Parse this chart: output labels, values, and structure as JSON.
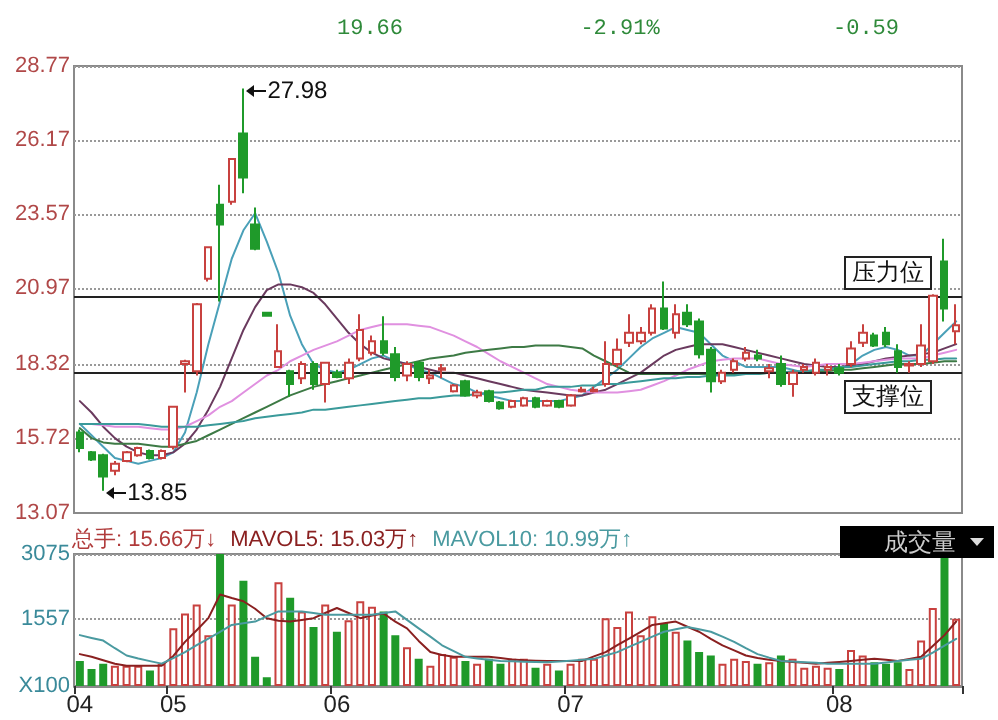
{
  "chart_data": [
    {
      "type": "candlestick",
      "categories": [
        "04",
        null,
        null,
        null,
        null,
        null,
        null,
        null,
        "05",
        null,
        null,
        null,
        null,
        null,
        null,
        null,
        null,
        null,
        null,
        null,
        null,
        null,
        "06",
        null,
        null,
        null,
        null,
        null,
        null,
        null,
        null,
        null,
        null,
        null,
        null,
        null,
        null,
        null,
        null,
        null,
        null,
        null,
        "07",
        null,
        null,
        null,
        null,
        null,
        null,
        null,
        null,
        null,
        null,
        null,
        null,
        null,
        null,
        null,
        null,
        null,
        null,
        null,
        null,
        null,
        null,
        "08",
        null,
        null,
        null,
        null,
        null,
        null,
        null,
        null,
        null,
        null
      ],
      "ohlc": [
        [
          15.9,
          16.0,
          15.2,
          15.35
        ],
        [
          15.2,
          15.25,
          14.9,
          14.95
        ],
        [
          15.1,
          15.15,
          13.85,
          14.35
        ],
        [
          14.55,
          14.9,
          14.4,
          14.8
        ],
        [
          14.9,
          15.25,
          14.85,
          15.2
        ],
        [
          15.1,
          15.4,
          15.05,
          15.35
        ],
        [
          15.25,
          15.3,
          14.95,
          15.0
        ],
        [
          15.0,
          15.3,
          14.95,
          15.25
        ],
        [
          15.4,
          16.8,
          15.3,
          16.8
        ],
        [
          18.3,
          18.45,
          17.3,
          18.4
        ],
        [
          18.05,
          20.45,
          17.9,
          20.4
        ],
        [
          21.3,
          22.4,
          21.2,
          22.4
        ],
        [
          23.9,
          24.6,
          20.5,
          23.2
        ],
        [
          24.0,
          25.5,
          23.9,
          25.5
        ],
        [
          26.4,
          27.98,
          24.3,
          24.85
        ],
        [
          23.2,
          23.8,
          22.3,
          22.35
        ],
        [
          20.1,
          20.1,
          20.0,
          20.0
        ],
        [
          18.2,
          19.7,
          18.2,
          18.75
        ],
        [
          18.05,
          18.1,
          17.15,
          17.6
        ],
        [
          17.8,
          18.4,
          17.6,
          18.3
        ],
        [
          18.3,
          18.4,
          17.4,
          17.6
        ],
        [
          17.6,
          18.35,
          16.95,
          18.35
        ],
        [
          18.0,
          18.1,
          17.8,
          17.85
        ],
        [
          17.8,
          18.5,
          17.6,
          18.35
        ],
        [
          18.5,
          20.05,
          18.4,
          19.5
        ],
        [
          18.7,
          19.3,
          18.6,
          19.1
        ],
        [
          19.1,
          19.98,
          18.6,
          18.7
        ],
        [
          18.65,
          18.9,
          17.7,
          17.85
        ],
        [
          17.9,
          18.4,
          17.7,
          18.3
        ],
        [
          18.35,
          18.4,
          17.7,
          17.85
        ],
        [
          17.8,
          18.1,
          17.6,
          17.9
        ],
        [
          18.1,
          18.3,
          17.8,
          18.15
        ],
        [
          17.35,
          17.6,
          17.3,
          17.55
        ],
        [
          17.7,
          17.75,
          17.15,
          17.2
        ],
        [
          17.2,
          17.4,
          17.1,
          17.3
        ],
        [
          17.35,
          17.4,
          16.95,
          17.0
        ],
        [
          16.95,
          17.0,
          16.7,
          16.75
        ],
        [
          16.8,
          17.05,
          16.75,
          17.0
        ],
        [
          16.85,
          17.15,
          16.8,
          17.1
        ],
        [
          17.1,
          17.15,
          16.75,
          16.8
        ],
        [
          16.85,
          17.05,
          16.8,
          17.0
        ],
        [
          17.0,
          17.05,
          16.75,
          16.8
        ],
        [
          16.85,
          17.25,
          16.8,
          17.2
        ],
        [
          17.35,
          17.5,
          17.3,
          17.4
        ],
        [
          17.35,
          17.5,
          17.3,
          17.4
        ],
        [
          17.6,
          19.1,
          17.5,
          18.3
        ],
        [
          18.3,
          19.2,
          18.2,
          18.8
        ],
        [
          19.05,
          20.05,
          18.9,
          19.4
        ],
        [
          19.1,
          19.6,
          19.0,
          19.4
        ],
        [
          19.4,
          20.4,
          19.3,
          20.25
        ],
        [
          20.25,
          21.2,
          19.5,
          19.55
        ],
        [
          19.4,
          20.4,
          19.2,
          20.05
        ],
        [
          20.1,
          20.4,
          19.6,
          19.7
        ],
        [
          19.8,
          19.9,
          18.5,
          18.65
        ],
        [
          18.8,
          18.9,
          17.3,
          17.7
        ],
        [
          17.7,
          18.1,
          17.6,
          18.0
        ],
        [
          18.1,
          18.5,
          18.0,
          18.4
        ],
        [
          18.5,
          18.9,
          18.4,
          18.7
        ],
        [
          18.6,
          18.8,
          18.4,
          18.5
        ],
        [
          18.05,
          18.3,
          17.8,
          18.15
        ],
        [
          18.3,
          18.6,
          17.5,
          17.6
        ],
        [
          17.6,
          18.1,
          17.15,
          18.0
        ],
        [
          18.1,
          18.3,
          18.0,
          18.2
        ],
        [
          18.0,
          18.5,
          17.9,
          18.35
        ],
        [
          18.1,
          18.3,
          17.9,
          18.2
        ],
        [
          18.15,
          18.3,
          17.9,
          18.0
        ],
        [
          18.3,
          19.1,
          18.2,
          18.85
        ],
        [
          19.05,
          19.7,
          18.9,
          19.4
        ],
        [
          19.3,
          19.4,
          18.9,
          18.95
        ],
        [
          19.4,
          19.6,
          18.9,
          19.0
        ],
        [
          18.75,
          19.0,
          18.0,
          18.2
        ],
        [
          18.25,
          18.4,
          18.0,
          18.3
        ],
        [
          18.3,
          19.7,
          18.2,
          18.95
        ],
        [
          18.4,
          20.75,
          18.3,
          20.7
        ],
        [
          21.9,
          22.7,
          19.8,
          20.25
        ],
        [
          19.45,
          20.4,
          19.0,
          19.66
        ]
      ],
      "colors": [
        "#1f9a2a",
        "#1f9a2a",
        "#1f9a2a",
        "#c8413f",
        "#c8413f",
        "#c8413f",
        "#1f9a2a",
        "#c8413f",
        "#c8413f",
        "#c8413f",
        "#c8413f",
        "#c8413f",
        "#1f9a2a",
        "#c8413f",
        "#1f9a2a",
        "#1f9a2a",
        "#1f9a2a",
        "#c8413f",
        "#1f9a2a",
        "#c8413f",
        "#1f9a2a",
        "#c8413f",
        "#1f9a2a",
        "#c8413f",
        "#c8413f",
        "#c8413f",
        "#1f9a2a",
        "#1f9a2a",
        "#c8413f",
        "#1f9a2a",
        "#c8413f",
        "#c8413f",
        "#c8413f",
        "#1f9a2a",
        "#c8413f",
        "#1f9a2a",
        "#1f9a2a",
        "#c8413f",
        "#c8413f",
        "#1f9a2a",
        "#c8413f",
        "#1f9a2a",
        "#c8413f",
        "#c8413f",
        "#c8413f",
        "#c8413f",
        "#c8413f",
        "#c8413f",
        "#c8413f",
        "#c8413f",
        "#1f9a2a",
        "#c8413f",
        "#1f9a2a",
        "#1f9a2a",
        "#1f9a2a",
        "#c8413f",
        "#c8413f",
        "#c8413f",
        "#1f9a2a",
        "#c8413f",
        "#1f9a2a",
        "#c8413f",
        "#c8413f",
        "#c8413f",
        "#c8413f",
        "#1f9a2a",
        "#c8413f",
        "#c8413f",
        "#1f9a2a",
        "#1f9a2a",
        "#1f9a2a",
        "#c8413f",
        "#c8413f",
        "#c8413f",
        "#1f9a2a",
        "#c8413f"
      ],
      "series": [
        {
          "type": "line",
          "color": "#4aa0b8",
          "values": [
            16.2,
            15.8,
            15.4,
            15.0,
            14.9,
            14.8,
            14.9,
            15.0,
            15.2,
            15.9,
            17.3,
            19.0,
            20.5,
            22.0,
            23.0,
            23.6,
            22.6,
            21.5,
            20.0,
            19.0,
            18.3,
            18.1,
            18.0,
            18.1,
            18.3,
            18.5,
            18.6,
            18.4,
            18.3,
            18.1,
            18.0,
            17.8,
            17.6,
            17.5,
            17.3,
            17.2,
            17.1,
            17.0,
            17.0,
            17.0,
            17.0,
            17.0,
            17.1,
            17.2,
            17.5,
            17.8,
            18.1,
            18.5,
            18.9,
            19.2,
            19.4,
            19.6,
            19.5,
            19.4,
            19.0,
            18.6,
            18.4,
            18.2,
            18.2,
            18.2,
            18.2,
            18.1,
            18.0,
            18.0,
            18.1,
            18.1,
            18.3,
            18.6,
            18.8,
            18.9,
            18.8,
            18.6,
            18.6,
            19.0,
            19.4,
            19.8
          ]
        },
        {
          "type": "line",
          "color": "#6a3a5e",
          "values": [
            17.0,
            16.6,
            16.1,
            15.7,
            15.4,
            15.2,
            15.1,
            15.1,
            15.2,
            15.5,
            16.0,
            16.7,
            17.5,
            18.5,
            19.5,
            20.3,
            20.9,
            21.1,
            21.1,
            21.0,
            20.8,
            20.4,
            19.9,
            19.4,
            19.0,
            18.7,
            18.5,
            18.4,
            18.3,
            18.2,
            18.1,
            18.0,
            18.0,
            17.9,
            17.8,
            17.7,
            17.6,
            17.5,
            17.4,
            17.35,
            17.3,
            17.25,
            17.2,
            17.2,
            17.3,
            17.4,
            17.6,
            17.8,
            18.0,
            18.3,
            18.6,
            18.8,
            18.9,
            19.0,
            19.0,
            19.0,
            18.9,
            18.8,
            18.7,
            18.6,
            18.5,
            18.4,
            18.3,
            18.25,
            18.2,
            18.2,
            18.25,
            18.3,
            18.4,
            18.5,
            18.55,
            18.6,
            18.65,
            18.7,
            18.85,
            19.0
          ]
        },
        {
          "type": "line",
          "color": "#e090e0",
          "values": [
            null,
            16.2,
            16.15,
            16.1,
            16.1,
            16.1,
            16.05,
            16.0,
            16.0,
            16.1,
            16.3,
            16.5,
            16.8,
            17.0,
            17.3,
            17.6,
            17.9,
            18.1,
            18.4,
            18.6,
            18.8,
            18.95,
            19.1,
            19.3,
            19.5,
            19.6,
            19.7,
            19.7,
            19.7,
            19.65,
            19.6,
            19.45,
            19.3,
            19.1,
            18.9,
            18.65,
            18.4,
            18.2,
            18.0,
            17.8,
            17.6,
            17.5,
            17.4,
            17.35,
            17.3,
            17.3,
            17.3,
            17.35,
            17.4,
            17.55,
            17.7,
            17.9,
            18.1,
            18.25,
            18.4,
            18.45,
            18.5,
            18.5,
            18.5,
            18.4,
            18.3,
            18.25,
            18.2,
            18.25,
            18.3,
            18.3,
            18.3,
            18.35,
            18.4,
            18.45,
            18.5,
            18.5,
            18.5,
            18.6,
            18.7,
            18.8
          ]
        },
        {
          "type": "line",
          "color": "#3d7a45",
          "values": [
            16.05,
            15.7,
            15.55,
            15.5,
            15.5,
            15.5,
            15.45,
            15.4,
            15.4,
            15.5,
            15.6,
            15.8,
            16.0,
            16.2,
            16.4,
            16.6,
            16.8,
            17.0,
            17.2,
            17.35,
            17.5,
            17.6,
            17.7,
            17.8,
            17.9,
            18.0,
            18.1,
            18.2,
            18.3,
            18.4,
            18.5,
            18.55,
            18.6,
            18.7,
            18.75,
            18.8,
            18.85,
            18.9,
            18.9,
            18.95,
            18.95,
            18.95,
            18.9,
            18.85,
            18.6,
            18.4,
            18.2,
            18.0,
            17.95,
            17.95,
            17.95,
            17.95,
            17.95,
            17.95,
            17.95,
            17.95,
            17.95,
            17.95,
            17.95,
            18.0,
            18.0,
            18.0,
            18.0,
            18.05,
            18.05,
            18.1,
            18.1,
            18.15,
            18.2,
            18.25,
            18.3,
            18.3,
            18.3,
            18.35,
            18.4,
            18.4
          ]
        },
        {
          "type": "line",
          "color": "#3a9a9a",
          "values": [
            16.2,
            16.2,
            16.2,
            16.2,
            16.2,
            16.2,
            16.15,
            16.1,
            16.1,
            16.1,
            16.1,
            16.15,
            16.2,
            16.25,
            16.3,
            16.4,
            16.45,
            16.5,
            16.55,
            16.6,
            16.7,
            16.7,
            16.75,
            16.8,
            16.85,
            16.9,
            16.95,
            17.0,
            17.05,
            17.1,
            17.1,
            17.15,
            17.2,
            17.2,
            17.25,
            17.3,
            17.3,
            17.35,
            17.4,
            17.4,
            17.5,
            17.5,
            17.5,
            17.55,
            17.55,
            17.6,
            17.6,
            17.65,
            17.7,
            17.75,
            17.8,
            17.8,
            17.85,
            17.85,
            17.9,
            17.9,
            17.9,
            17.95,
            17.95,
            18.0,
            18.0,
            18.05,
            18.05,
            18.1,
            18.1,
            18.2,
            18.2,
            18.25,
            18.3,
            18.35,
            18.4,
            18.4,
            18.45,
            18.45,
            18.5,
            18.5
          ]
        }
      ],
      "ylim": [
        13.07,
        28.77
      ],
      "yticks": [
        13.07,
        15.72,
        18.32,
        20.97,
        23.57,
        26.17,
        28.77
      ],
      "grid": "y",
      "tick_labels": "y",
      "marker": "none",
      "ref_lines": [
        {
          "axis": "y",
          "value": 20.69,
          "label": "压力位",
          "color": "#222222"
        },
        {
          "axis": "y",
          "value": 17.97,
          "label": "支撑位",
          "color": "#222222"
        }
      ],
      "annotations": [
        "19.66",
        "-2.91%",
        "-0.59",
        "27.98",
        "13.85"
      ]
    },
    {
      "type": "bar",
      "categories": [
        "04",
        null,
        null,
        null,
        null,
        null,
        null,
        null,
        "05",
        null,
        null,
        null,
        null,
        null,
        null,
        null,
        null,
        null,
        null,
        null,
        null,
        null,
        "06",
        null,
        null,
        null,
        null,
        null,
        null,
        null,
        null,
        null,
        null,
        null,
        null,
        null,
        null,
        null,
        null,
        null,
        null,
        null,
        "07",
        null,
        null,
        null,
        null,
        null,
        null,
        null,
        null,
        null,
        null,
        null,
        null,
        null,
        null,
        null,
        null,
        null,
        null,
        null,
        null,
        null,
        null,
        "08",
        null,
        null,
        null,
        null,
        null,
        null,
        null,
        null,
        null,
        null
      ],
      "series": [
        {
          "type": "bar",
          "colors": [
            "#1f9a2a",
            "#1f9a2a",
            "#1f9a2a",
            "#c8413f",
            "#c8413f",
            "#c8413f",
            "#1f9a2a",
            "#c8413f",
            "#c8413f",
            "#c8413f",
            "#c8413f",
            "#c8413f",
            "#1f9a2a",
            "#c8413f",
            "#1f9a2a",
            "#1f9a2a",
            "#1f9a2a",
            "#c8413f",
            "#1f9a2a",
            "#c8413f",
            "#1f9a2a",
            "#c8413f",
            "#1f9a2a",
            "#c8413f",
            "#c8413f",
            "#c8413f",
            "#1f9a2a",
            "#1f9a2a",
            "#c8413f",
            "#1f9a2a",
            "#c8413f",
            "#c8413f",
            "#c8413f",
            "#1f9a2a",
            "#c8413f",
            "#1f9a2a",
            "#1f9a2a",
            "#c8413f",
            "#c8413f",
            "#1f9a2a",
            "#c8413f",
            "#1f9a2a",
            "#c8413f",
            "#c8413f",
            "#c8413f",
            "#c8413f",
            "#c8413f",
            "#c8413f",
            "#c8413f",
            "#c8413f",
            "#1f9a2a",
            "#c8413f",
            "#1f9a2a",
            "#1f9a2a",
            "#1f9a2a",
            "#c8413f",
            "#c8413f",
            "#c8413f",
            "#1f9a2a",
            "#c8413f",
            "#1f9a2a",
            "#c8413f",
            "#c8413f",
            "#c8413f",
            "#c8413f",
            "#1f9a2a",
            "#c8413f",
            "#c8413f",
            "#1f9a2a",
            "#1f9a2a",
            "#1f9a2a",
            "#c8413f",
            "#c8413f",
            "#c8413f",
            "#1f9a2a",
            "#c8413f"
          ],
          "values": [
            585,
            395,
            520,
            474,
            474,
            474,
            363,
            520,
            1343,
            1690,
            1896,
            1185,
            3075,
            1896,
            2449,
            679,
            205,
            2417,
            2054,
            1738,
            1375,
            1896,
            1264,
            1533,
            1975,
            1849,
            1738,
            1185,
            901,
            632,
            474,
            743,
            679,
            585,
            521,
            632,
            521,
            632,
            632,
            427,
            521,
            363,
            521,
            632,
            632,
            1580,
            1375,
            1738,
            1185,
            1627,
            1469,
            1264,
            1059,
            790,
            711,
            521,
            632,
            585,
            521,
            553,
            711,
            632,
            427,
            474,
            427,
            395,
            837,
            711,
            553,
            521,
            553,
            395,
            1059,
            1817,
            3002,
            1566
          ]
        },
        {
          "type": "line",
          "color": "#8a2020",
          "values": [
            743,
            680,
            600,
            520,
            474,
            474,
            474,
            474,
            700,
            1027,
            1300,
            1580,
            2133,
            2050,
            1975,
            1800,
            1580,
            1520,
            1500,
            1540,
            1580,
            1700,
            1817,
            1700,
            1580,
            1640,
            1690,
            1500,
            1343,
            1050,
            790,
            720,
            679,
            679,
            679,
            679,
            650,
            620,
            600,
            590,
            585,
            585,
            585,
            585,
            690,
            790,
            950,
            1106,
            1260,
            1422,
            1460,
            1500,
            1380,
            1264,
            1100,
            948,
            830,
            711,
            650,
            610,
            585,
            560,
            540,
            521,
            540,
            560,
            585,
            610,
            632,
            610,
            585,
            630,
            679,
            930,
            1185,
            1503
          ]
        },
        {
          "type": "line",
          "color": "#4a9aa0",
          "values": [
            1185,
            1120,
            1059,
            880,
            711,
            640,
            580,
            521,
            650,
            790,
            950,
            1106,
            1260,
            1422,
            1460,
            1500,
            1620,
            1738,
            1738,
            1738,
            1700,
            1659,
            1659,
            1659,
            1659,
            1659,
            1700,
            1738,
            1540,
            1343,
            1150,
            948,
            810,
            679,
            640,
            610,
            585,
            575,
            565,
            560,
            553,
            570,
            590,
            610,
            632,
            710,
            790,
            910,
            1027,
            1150,
            1264,
            1320,
            1375,
            1320,
            1264,
            1150,
            1027,
            880,
            743,
            660,
            585,
            570,
            555,
            540,
            521,
            521,
            521,
            521,
            521,
            550,
            580,
            610,
            632,
            780,
            940,
            1099
          ]
        }
      ],
      "ylim": [
        0,
        3075
      ],
      "yticks": [
        {
          "value": 0,
          "label": "X100"
        },
        1557,
        3075
      ],
      "grid": "y",
      "marker": "none",
      "annotations": [
        "总手: 15.66万↓",
        "MAVOL5: 15.03万↑",
        "MAVOL10: 10.99万↑",
        "成交量"
      ]
    }
  ]
}
